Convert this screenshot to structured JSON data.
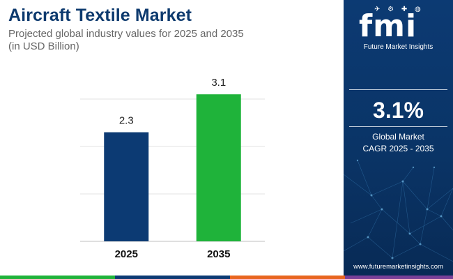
{
  "header": {
    "title": "Aircraft Textile Market",
    "subtitle": "Projected global industry values for 2025 and 2035",
    "unit_note": "(in USD Billion)"
  },
  "chart_data": {
    "type": "bar",
    "title": "Aircraft Textile Market",
    "xlabel": "",
    "ylabel": "USD Billion",
    "categories": [
      "2025",
      "2035"
    ],
    "values": [
      2.3,
      3.1
    ],
    "value_labels": [
      "2.3",
      "3.1"
    ],
    "ylim": [
      0,
      3.5
    ],
    "grid": true,
    "colors": [
      "#0c3a73",
      "#1fb33a"
    ]
  },
  "sidebar": {
    "logo_text": "fmi",
    "logo_tagline": "Future Market Insights",
    "cagr_value": "3.1%",
    "cagr_label_line1": "Global Market",
    "cagr_label_line2": "CAGR 2025 - 2035",
    "website": "www.futuremarketinsights.com"
  },
  "colors": {
    "title": "#0d3a6e",
    "panel_bg": "#0c3a73",
    "stripe": [
      "#1fb33a",
      "#0c3a73",
      "#e8651f",
      "#7a3f98"
    ]
  }
}
